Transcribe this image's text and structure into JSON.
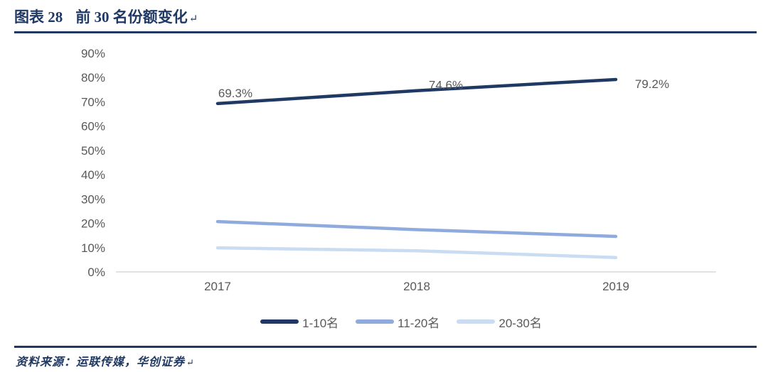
{
  "header": {
    "figure_label": "图表 28",
    "figure_title": "前 30 名份额变化",
    "return_mark": "↵"
  },
  "footer": {
    "source": "资料来源：运联传媒，华创证券",
    "return_mark": "↵"
  },
  "colors": {
    "navy": "#1F3864",
    "tick_text": "#595959",
    "axis_line": "#D9D9D9",
    "series1": "#1F3864",
    "series2": "#8FAADC",
    "series3": "#C9DCF2"
  },
  "chart_data": {
    "type": "line",
    "title": "前30名份额变化",
    "categories": [
      "2017",
      "2018",
      "2019"
    ],
    "series": [
      {
        "name": "1-10名",
        "color": "#1F3864",
        "values": [
          69.3,
          74.6,
          79.2
        ],
        "point_labels": [
          "69.3%",
          "74.6%",
          "79.2%"
        ]
      },
      {
        "name": "11-20名",
        "color": "#8FAADC",
        "values": [
          20.7,
          17.4,
          14.6
        ]
      },
      {
        "name": "20-30名",
        "color": "#C9DCF2",
        "values": [
          9.9,
          8.7,
          5.9
        ]
      }
    ],
    "ylim": [
      0,
      90
    ],
    "yticks": [
      "0%",
      "10%",
      "20%",
      "30%",
      "40%",
      "50%",
      "60%",
      "70%",
      "80%",
      "90%"
    ],
    "xlabel": "",
    "ylabel": "",
    "grid": false,
    "legend_position": "bottom"
  }
}
